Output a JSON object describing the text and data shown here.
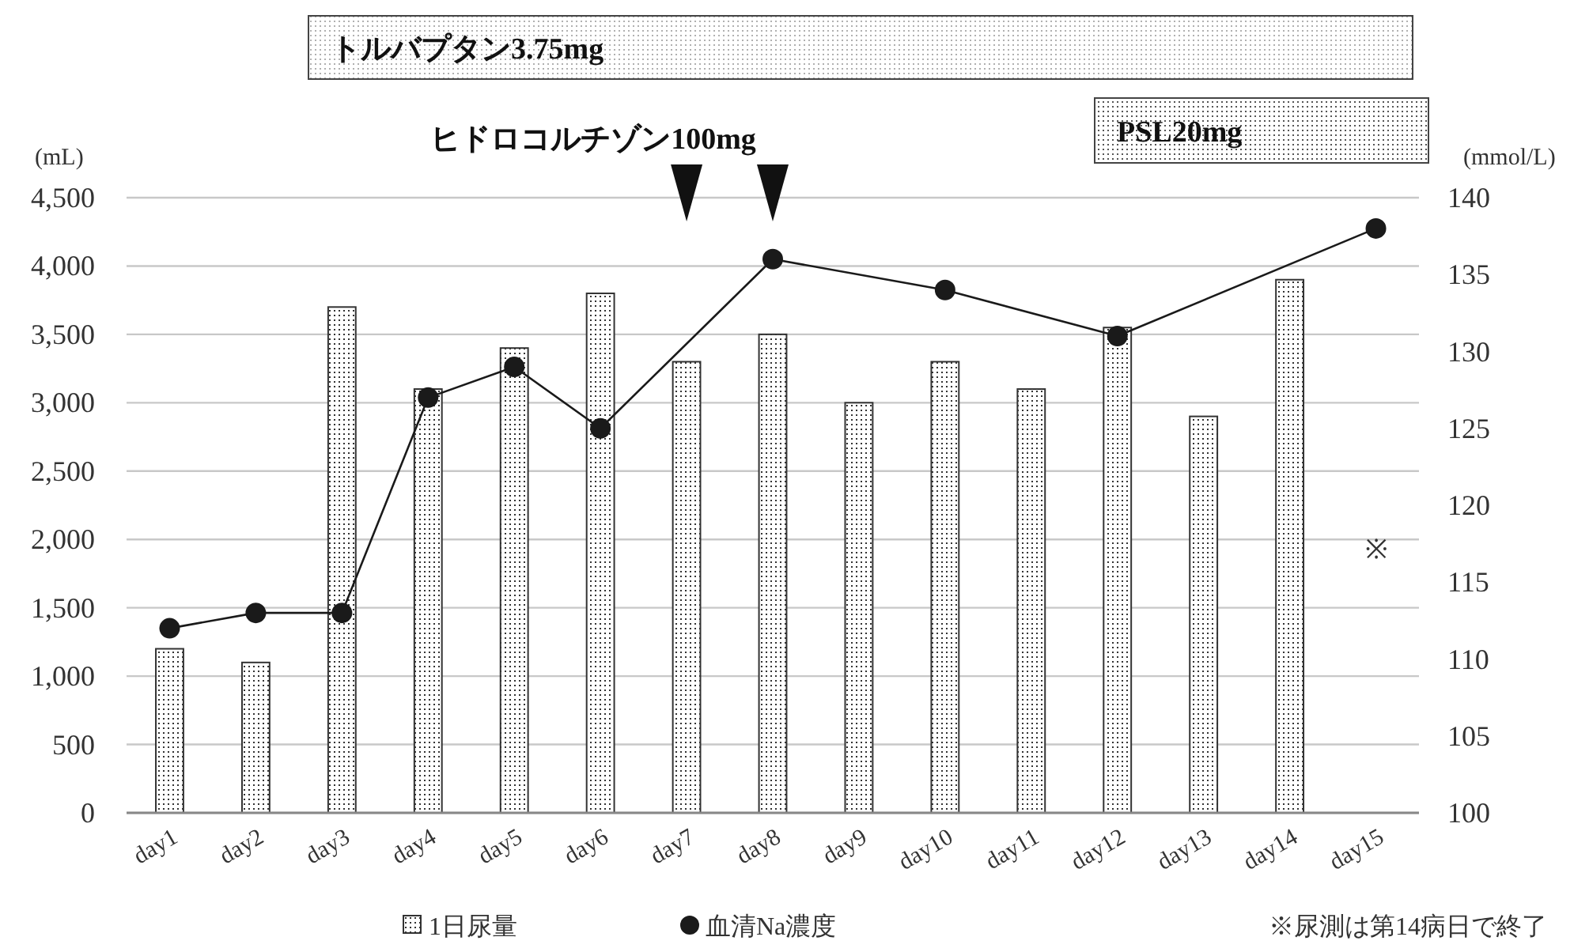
{
  "chart_data": {
    "type": "bar",
    "categories": [
      "day1",
      "day2",
      "day3",
      "day4",
      "day5",
      "day6",
      "day7",
      "day8",
      "day9",
      "day10",
      "day11",
      "day12",
      "day13",
      "day14",
      "day15"
    ],
    "series": [
      {
        "name": "1日尿量",
        "color": "#333333",
        "values": [
          1200,
          1100,
          3700,
          3100,
          3400,
          3800,
          3300,
          3500,
          3000,
          3300,
          3100,
          3550,
          2900,
          3900,
          null
        ]
      },
      {
        "name": "血清Na濃度",
        "type": "line",
        "axis": "y2",
        "color": "#1a1a1a",
        "marker": "circle",
        "values": [
          112,
          113,
          113,
          127,
          129,
          125,
          null,
          136,
          null,
          134,
          null,
          131,
          null,
          null,
          138
        ]
      }
    ],
    "ylabel": "(mL)",
    "y2label": "(mmol/L)",
    "ylim": [
      0,
      4500
    ],
    "yticks": [
      0,
      500,
      {
        "value": 1000,
        "label": "1,000"
      },
      {
        "value": 1500,
        "label": "1,500"
      },
      {
        "value": 2000,
        "label": "2,000"
      },
      {
        "value": 2500,
        "label": "2,500"
      },
      {
        "value": 3000,
        "label": "3,000"
      },
      {
        "value": 3500,
        "label": "3,500"
      },
      {
        "value": 4000,
        "label": "4,000"
      },
      {
        "value": 4500,
        "label": "4,500"
      }
    ],
    "y2lim": [
      100,
      140
    ],
    "y2ticks": [
      100,
      105,
      110,
      115,
      120,
      125,
      130,
      135,
      140
    ],
    "grid": "y",
    "legend": "bottom",
    "annotations": [
      "トルバプタン3.75mg",
      "ヒドロコルチゾン100mg",
      "PSL20mg",
      "※",
      "※尿測は第14病日で終了"
    ]
  }
}
